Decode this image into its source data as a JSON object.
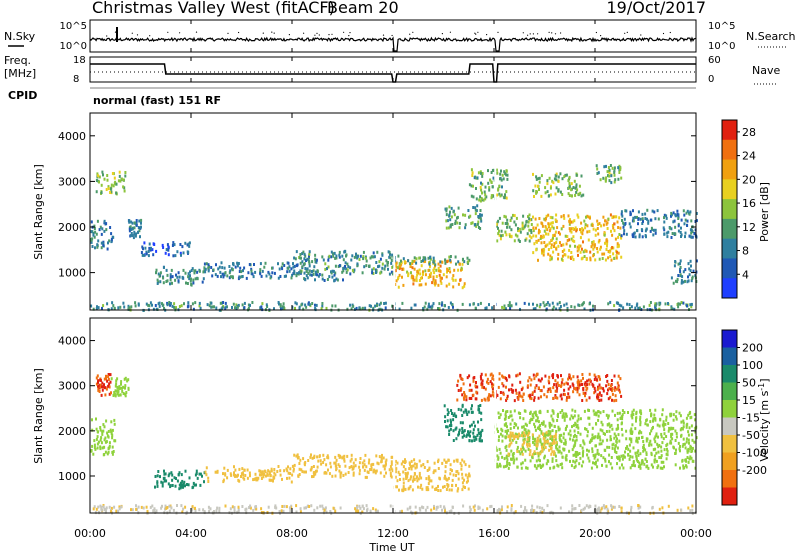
{
  "header": {
    "station": "Christmas Valley West (fitACF)",
    "beam": "Beam 20",
    "date": "19/Oct/2017"
  },
  "status_panels": {
    "nsky_label": "N.Sky",
    "nsky_ticks": [
      "10^5",
      "10^0"
    ],
    "nsearch_label": "N.Search",
    "nsearch_ticks": [
      "10^5",
      "10^0"
    ],
    "freq_label_1": "Freq.",
    "freq_label_2": "[MHz]",
    "freq_ticks": [
      "18",
      "8"
    ],
    "nave_label": "Nave",
    "nave_ticks": [
      "60",
      "0"
    ],
    "cpid_label": "CPID",
    "cpid_value": "normal (fast) 151 RF"
  },
  "chart_data": [
    {
      "type": "heatmap",
      "name": "power",
      "ylabel": "Slant Range [km]",
      "xlabel": "Time UT",
      "x_ticks": [
        "00:00",
        "04:00",
        "08:00",
        "12:00",
        "16:00",
        "20:00",
        "00:00"
      ],
      "xlim_hours": [
        0,
        24
      ],
      "y_ticks": [
        "1000",
        "2000",
        "3000",
        "4000"
      ],
      "ylim_km": [
        180,
        4500
      ],
      "colorbar_label": "Power [dB]",
      "colorbar_ticks": [
        "4",
        "8",
        "12",
        "16",
        "20",
        "24",
        "28"
      ],
      "colorbar_range": [
        0,
        30
      ],
      "colors": [
        "#1f3fff",
        "#1f58b5",
        "#2f7f9f",
        "#4c9a6a",
        "#8cc43c",
        "#e8d020",
        "#f0a010",
        "#f07010",
        "#e02010"
      ],
      "scatter_regions": [
        {
          "t0": 0.0,
          "t1": 0.9,
          "r0": 1550,
          "r1": 2200,
          "level": 9
        },
        {
          "t0": 0.2,
          "t1": 1.4,
          "r0": 2750,
          "r1": 3250,
          "level": 14
        },
        {
          "t0": 1.5,
          "t1": 2.0,
          "r0": 1800,
          "r1": 2200,
          "level": 8
        },
        {
          "t0": 2.0,
          "t1": 4.0,
          "r0": 1400,
          "r1": 1700,
          "level": 6
        },
        {
          "t0": 2.5,
          "t1": 4.5,
          "r0": 750,
          "r1": 1150,
          "level": 9
        },
        {
          "t0": 4.5,
          "t1": 8.5,
          "r0": 900,
          "r1": 1250,
          "level": 8
        },
        {
          "t0": 8.0,
          "t1": 10.0,
          "r0": 850,
          "r1": 1100,
          "level": 9
        },
        {
          "t0": 8.0,
          "t1": 12.0,
          "r0": 1000,
          "r1": 1500,
          "level": 10
        },
        {
          "t0": 12.0,
          "t1": 14.8,
          "r0": 700,
          "r1": 1300,
          "level": 20
        },
        {
          "t0": 12.0,
          "t1": 15.0,
          "r0": 1200,
          "r1": 1400,
          "level": 11
        },
        {
          "t0": 14.0,
          "t1": 15.5,
          "r0": 2000,
          "r1": 2500,
          "level": 12
        },
        {
          "t0": 15.0,
          "t1": 16.5,
          "r0": 2600,
          "r1": 3300,
          "level": 13
        },
        {
          "t0": 16.0,
          "t1": 17.5,
          "r0": 1700,
          "r1": 2300,
          "level": 14
        },
        {
          "t0": 17.5,
          "t1": 21.0,
          "r0": 1300,
          "r1": 2300,
          "level": 20
        },
        {
          "t0": 17.5,
          "t1": 19.5,
          "r0": 2700,
          "r1": 3200,
          "level": 14
        },
        {
          "t0": 20.0,
          "t1": 21.0,
          "r0": 3000,
          "r1": 3400,
          "level": 13
        },
        {
          "t0": 21.0,
          "t1": 24.0,
          "r0": 1800,
          "r1": 2400,
          "level": 8
        },
        {
          "t0": 23.0,
          "t1": 24.0,
          "r0": 800,
          "r1": 1300,
          "level": 9
        },
        {
          "t0": 0.0,
          "t1": 24.0,
          "r0": 180,
          "r1": 380,
          "level": 10
        }
      ]
    },
    {
      "type": "heatmap",
      "name": "velocity",
      "ylabel": "Slant Range [km]",
      "xlabel": "Time UT",
      "x_ticks": [
        "00:00",
        "04:00",
        "08:00",
        "12:00",
        "16:00",
        "20:00",
        "00:00"
      ],
      "xlim_hours": [
        0,
        24
      ],
      "y_ticks": [
        "1000",
        "2000",
        "3000",
        "4000"
      ],
      "ylim_km": [
        180,
        4500
      ],
      "colorbar_label": "Velocity [m s",
      "colorbar_label_sup": "-1",
      "colorbar_label_end": "]",
      "colorbar_ticks": [
        "200",
        "100",
        "50",
        "15",
        "-15",
        "-50",
        "-100",
        "-200"
      ],
      "colors": [
        "#1a1ad0",
        "#1a60a0",
        "#1a8a6a",
        "#4cb04c",
        "#8fd23c",
        "#c8c8c0",
        "#f0c040",
        "#f0a020",
        "#f07010",
        "#e02010"
      ],
      "scatter_regions": [
        {
          "t0": 0.0,
          "t1": 1.0,
          "r0": 1500,
          "r1": 2300,
          "level": 0
        },
        {
          "t0": 0.2,
          "t1": 0.8,
          "r0": 2800,
          "r1": 3300,
          "level": -200
        },
        {
          "t0": 0.8,
          "t1": 1.5,
          "r0": 2800,
          "r1": 3200,
          "level": 0
        },
        {
          "t0": 2.5,
          "t1": 4.5,
          "r0": 750,
          "r1": 1150,
          "level": 40
        },
        {
          "t0": 4.5,
          "t1": 8.0,
          "r0": 900,
          "r1": 1250,
          "level": -40
        },
        {
          "t0": 8.0,
          "t1": 12.0,
          "r0": 1000,
          "r1": 1500,
          "level": -40
        },
        {
          "t0": 12.0,
          "t1": 15.0,
          "r0": 700,
          "r1": 1400,
          "level": -60
        },
        {
          "t0": 14.0,
          "t1": 15.5,
          "r0": 1800,
          "r1": 2600,
          "level": 40
        },
        {
          "t0": 14.5,
          "t1": 21.0,
          "r0": 2700,
          "r1": 3300,
          "level": -200
        },
        {
          "t0": 16.0,
          "t1": 24.0,
          "r0": 1200,
          "r1": 2500,
          "level": 0
        },
        {
          "t0": 16.5,
          "t1": 18.5,
          "r0": 1500,
          "r1": 2000,
          "level": -60
        },
        {
          "t0": 0.0,
          "t1": 24.0,
          "r0": 180,
          "r1": 380,
          "level": -30
        }
      ]
    }
  ]
}
